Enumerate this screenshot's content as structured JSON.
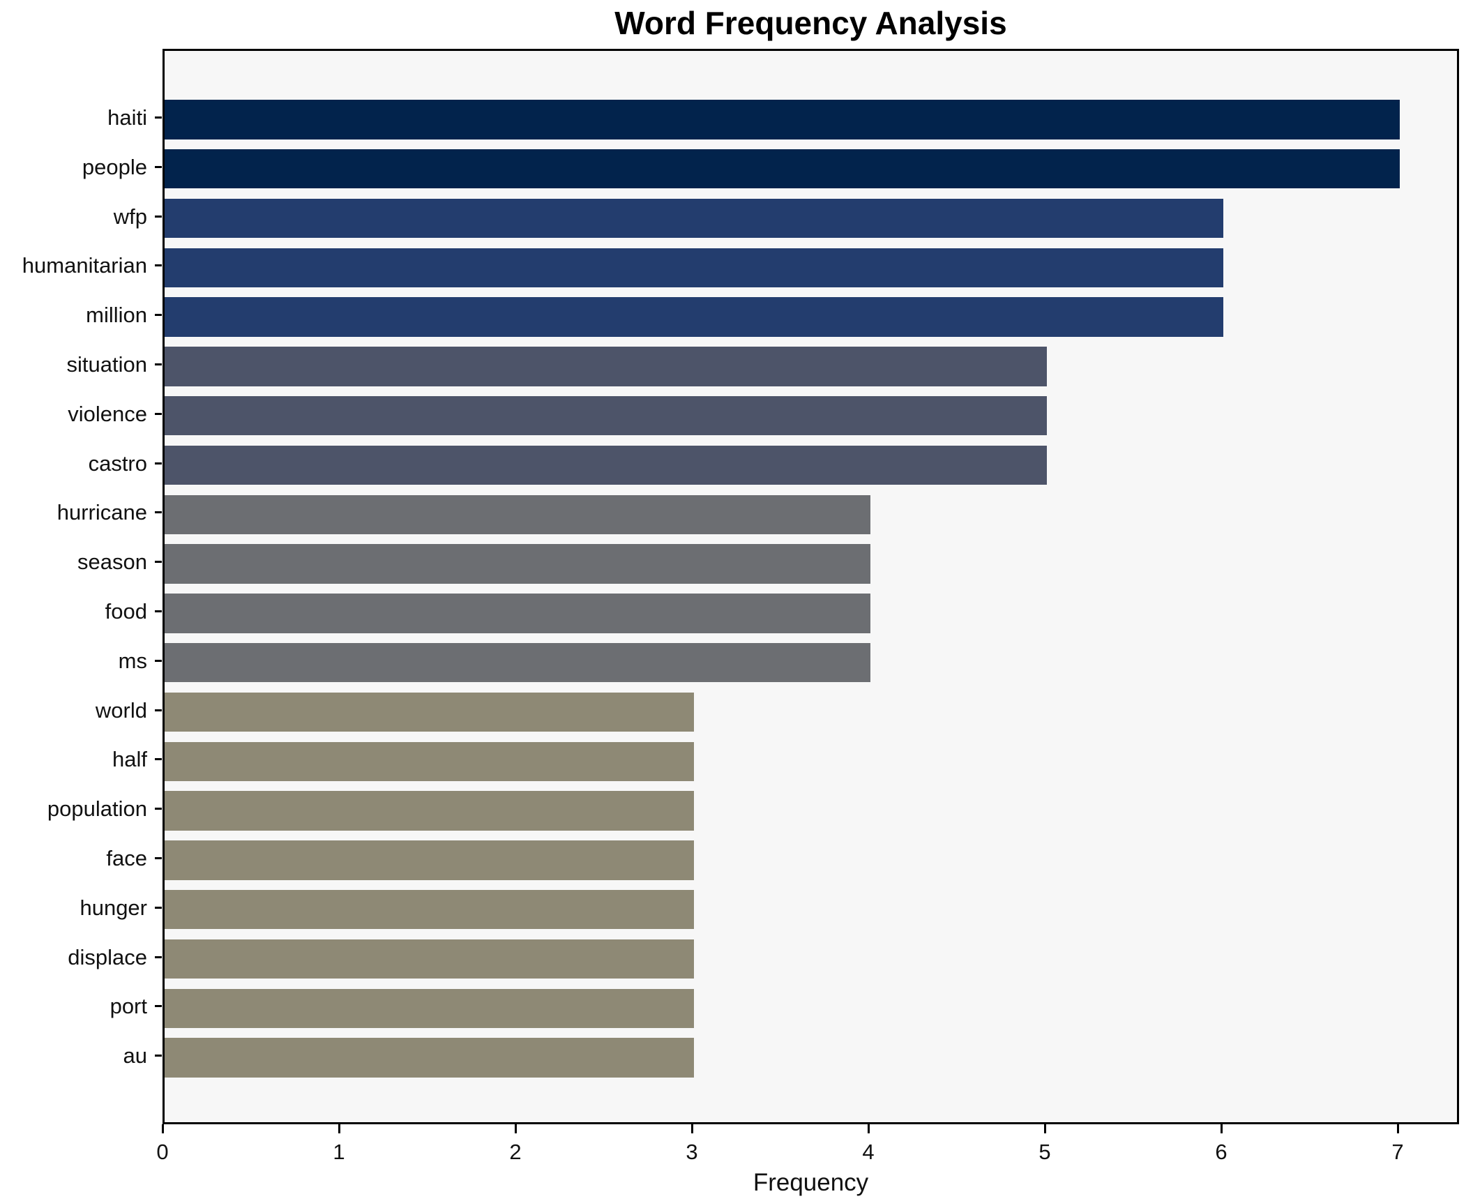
{
  "chart_data": {
    "type": "bar",
    "orientation": "horizontal",
    "title": "Word Frequency Analysis",
    "xlabel": "Frequency",
    "ylabel": "",
    "categories": [
      "haiti",
      "people",
      "wfp",
      "humanitarian",
      "million",
      "situation",
      "violence",
      "castro",
      "hurricane",
      "season",
      "food",
      "ms",
      "world",
      "half",
      "population",
      "face",
      "hunger",
      "displace",
      "port",
      "au"
    ],
    "values": [
      7,
      7,
      6,
      6,
      6,
      5,
      5,
      5,
      4,
      4,
      4,
      4,
      3,
      3,
      3,
      3,
      3,
      3,
      3,
      3
    ],
    "bar_colors": [
      "#02234c",
      "#02234c",
      "#233d6e",
      "#233d6e",
      "#233d6e",
      "#4d5469",
      "#4d5469",
      "#4d5469",
      "#6c6e72",
      "#6c6e72",
      "#6c6e72",
      "#6c6e72",
      "#8e8975",
      "#8e8975",
      "#8e8975",
      "#8e8975",
      "#8e8975",
      "#8e8975",
      "#8e8975",
      "#8e8975"
    ],
    "x_ticks": [
      0,
      1,
      2,
      3,
      4,
      5,
      6,
      7
    ],
    "xlim": [
      0,
      7.35
    ],
    "grid": false,
    "legend": "none",
    "plot_background": "#f7f7f7",
    "figure_background": "#ffffff",
    "spine_color": "#000000"
  }
}
